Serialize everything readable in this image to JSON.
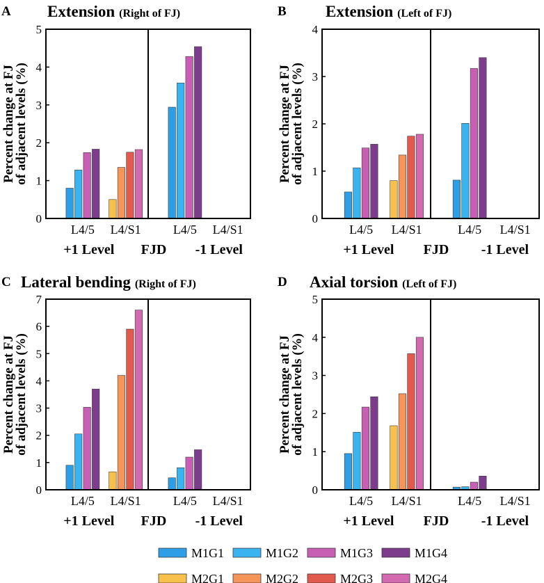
{
  "figure": {
    "ylabel_line1": "Percent change at FJ",
    "ylabel_line2": "of adjacent levels (%)",
    "level_labels": [
      "+1 Level",
      "FJD",
      "-1 Level"
    ],
    "legend": [
      {
        "label": "M1G1",
        "color": "#2E9FE6"
      },
      {
        "label": "M1G2",
        "color": "#3AB4F0"
      },
      {
        "label": "M1G3",
        "color": "#C95FB4"
      },
      {
        "label": "M1G4",
        "color": "#7E3C8C"
      },
      {
        "label": "M2G1",
        "color": "#F7C14B"
      },
      {
        "label": "M2G2",
        "color": "#F5955A"
      },
      {
        "label": "M2G3",
        "color": "#E2594E"
      },
      {
        "label": "M2G4",
        "color": "#D36AB0"
      }
    ]
  },
  "chart_data": [
    {
      "panel": "A",
      "type": "bar",
      "title_main": "Extension",
      "title_sub": "(Right of FJ)",
      "categories": [
        "L4/5",
        "L4/S1",
        "L4/5",
        "L4/S1"
      ],
      "ylim": [
        0,
        5
      ],
      "yticks": [
        0,
        1,
        2,
        3,
        4,
        5
      ],
      "series": [
        {
          "name": "M1G1",
          "category_index": 0,
          "values": [
            0.8,
            1.28,
            1.74,
            1.83
          ]
        },
        {
          "name": "M2G1",
          "category_index": 1,
          "values": [
            0.5,
            1.35,
            1.75,
            1.82
          ]
        },
        {
          "name": "M1G1",
          "category_index": 2,
          "values": [
            2.94,
            3.58,
            4.28,
            4.54
          ]
        }
      ]
    },
    {
      "panel": "B",
      "type": "bar",
      "title_main": "Extension",
      "title_sub": "(Left of FJ)",
      "categories": [
        "L4/5",
        "L4/S1",
        "L4/5",
        "L4/S1"
      ],
      "ylim": [
        0,
        4
      ],
      "yticks": [
        0,
        1,
        2,
        3,
        4
      ],
      "series": [
        {
          "name": "M1G1",
          "category_index": 0,
          "values": [
            0.56,
            1.07,
            1.49,
            1.57
          ]
        },
        {
          "name": "M2G1",
          "category_index": 1,
          "values": [
            0.8,
            1.34,
            1.74,
            1.78
          ]
        },
        {
          "name": "M1G1",
          "category_index": 2,
          "values": [
            0.81,
            2.01,
            3.17,
            3.4
          ]
        }
      ]
    },
    {
      "panel": "C",
      "type": "bar",
      "title_main": "Lateral bending",
      "title_sub": "(Right of FJ)",
      "categories": [
        "L4/5",
        "L4/S1",
        "L4/5",
        "L4/S1"
      ],
      "ylim": [
        0,
        7
      ],
      "yticks": [
        0,
        1,
        2,
        3,
        4,
        5,
        6,
        7
      ],
      "series": [
        {
          "name": "M1G1",
          "category_index": 0,
          "values": [
            0.9,
            2.05,
            3.03,
            3.7
          ]
        },
        {
          "name": "M2G1",
          "category_index": 1,
          "values": [
            0.66,
            4.2,
            5.9,
            6.6
          ]
        },
        {
          "name": "M1G1",
          "category_index": 2,
          "values": [
            0.44,
            0.81,
            1.2,
            1.47
          ]
        }
      ]
    },
    {
      "panel": "D",
      "type": "bar",
      "title_main": "Axial torsion",
      "title_sub": "(Left of FJ)",
      "categories": [
        "L4/5",
        "L4/S1",
        "L4/5",
        "L4/S1"
      ],
      "ylim": [
        0,
        5
      ],
      "yticks": [
        0,
        1,
        2,
        3,
        4,
        5
      ],
      "series": [
        {
          "name": "M1G1",
          "category_index": 0,
          "values": [
            0.95,
            1.51,
            2.17,
            2.44
          ]
        },
        {
          "name": "M2G1",
          "category_index": 1,
          "values": [
            1.68,
            2.52,
            3.57,
            4.0
          ]
        },
        {
          "name": "M1G1",
          "category_index": 2,
          "values": [
            0.07,
            0.08,
            0.2,
            0.36
          ]
        }
      ]
    }
  ]
}
